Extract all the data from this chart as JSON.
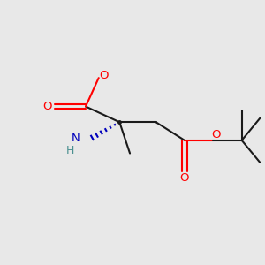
{
  "bg_color": "#e8e8e8",
  "atom_colors": {
    "O": "#ff0000",
    "N": "#0000bb",
    "C": "#1a1a1a",
    "H": "#4a9090"
  },
  "bond_color": "#1a1a1a",
  "lw": 1.5
}
